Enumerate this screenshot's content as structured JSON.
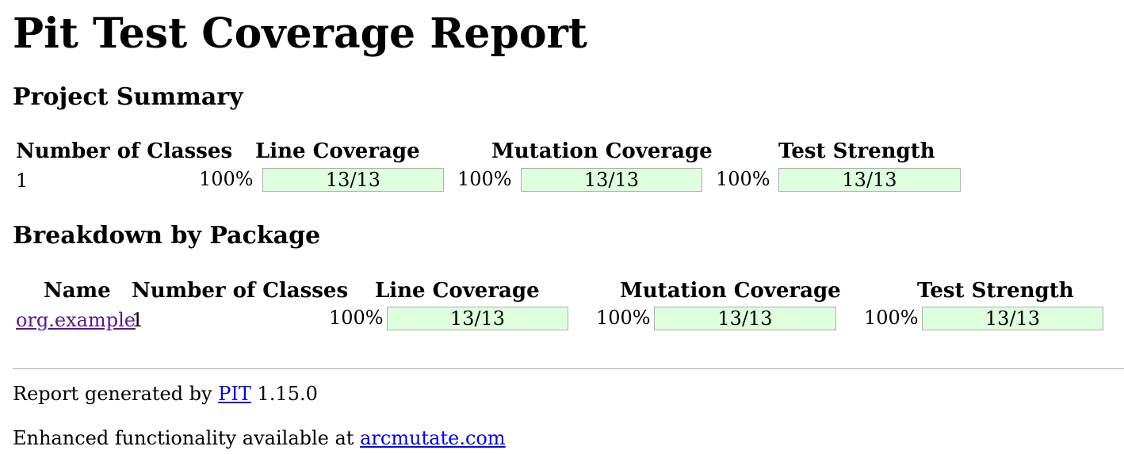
{
  "title": "Pit Test Coverage Report",
  "project_summary": {
    "heading": "Project Summary",
    "headers": [
      "Number of Classes",
      "Line Coverage",
      "Mutation Coverage",
      "Test Strength"
    ],
    "row": {
      "classes": "1",
      "line": {
        "percent": "100%",
        "ratio": "13/13"
      },
      "mutation": {
        "percent": "100%",
        "ratio": "13/13"
      },
      "strength": {
        "percent": "100%",
        "ratio": "13/13"
      }
    }
  },
  "breakdown": {
    "heading": "Breakdown by Package",
    "headers": [
      "Name",
      "Number of Classes",
      "Line Coverage",
      "Mutation Coverage",
      "Test Strength"
    ],
    "rows": [
      {
        "name": "org.example",
        "classes": "1",
        "line": {
          "percent": "100%",
          "ratio": "13/13"
        },
        "mutation": {
          "percent": "100%",
          "ratio": "13/13"
        },
        "strength": {
          "percent": "100%",
          "ratio": "13/13"
        }
      }
    ]
  },
  "footer": {
    "generated_prefix": "Report generated by",
    "pit_link": "PIT",
    "version": "1.15.0",
    "enhanced_prefix": "Enhanced functionality available at",
    "arcmutate_link": "arcmutate.com"
  },
  "colors": {
    "bar_fill": "#ddffdd",
    "link": "#0000ee",
    "visited_link": "#551a8b"
  }
}
